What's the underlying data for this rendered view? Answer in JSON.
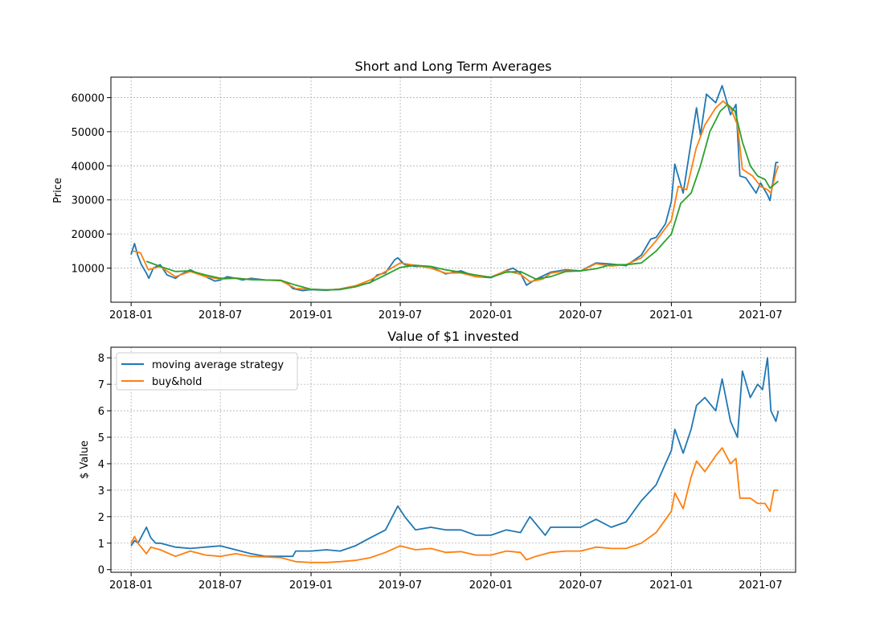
{
  "colors": {
    "blue": "#1f77b4",
    "orange": "#ff7f0e",
    "green": "#2ca02c",
    "grid": "#b0b0b0"
  },
  "chart_data": [
    {
      "type": "line",
      "title": "Short and Long Term Averages",
      "xlabel": "",
      "ylabel": "Price",
      "grid": true,
      "x_ticks": [
        "2018-01",
        "2018-07",
        "2019-01",
        "2019-07",
        "2020-01",
        "2020-07",
        "2021-01",
        "2021-07"
      ],
      "y_ticks": [
        10000,
        20000,
        30000,
        40000,
        50000,
        60000
      ],
      "ylim": [
        0,
        66000
      ],
      "xlim": [
        "2017-11-21",
        "2021-09-10"
      ],
      "series": [
        {
          "color": "#1f77b4",
          "x": [
            "2018-01-01",
            "2018-01-08",
            "2018-01-15",
            "2018-01-22",
            "2018-02-01",
            "2018-02-06",
            "2018-02-15",
            "2018-03-01",
            "2018-03-15",
            "2018-04-01",
            "2018-04-10",
            "2018-05-01",
            "2018-05-15",
            "2018-06-01",
            "2018-06-20",
            "2018-07-01",
            "2018-07-15",
            "2018-08-01",
            "2018-08-15",
            "2018-09-01",
            "2018-10-01",
            "2018-11-01",
            "2018-11-15",
            "2018-11-25",
            "2018-12-15",
            "2019-01-01",
            "2019-02-01",
            "2019-03-01",
            "2019-04-01",
            "2019-05-01",
            "2019-05-15",
            "2019-06-01",
            "2019-06-20",
            "2019-06-26",
            "2019-07-10",
            "2019-08-01",
            "2019-09-01",
            "2019-10-01",
            "2019-11-01",
            "2019-12-01",
            "2020-01-01",
            "2020-02-01",
            "2020-02-15",
            "2020-03-01",
            "2020-03-13",
            "2020-04-01",
            "2020-05-01",
            "2020-06-01",
            "2020-07-01",
            "2020-08-01",
            "2020-09-01",
            "2020-10-01",
            "2020-11-01",
            "2020-11-20",
            "2020-12-01",
            "2020-12-20",
            "2021-01-01",
            "2021-01-08",
            "2021-01-25",
            "2021-02-10",
            "2021-02-21",
            "2021-03-01",
            "2021-03-13",
            "2021-04-01",
            "2021-04-14",
            "2021-05-01",
            "2021-05-12",
            "2021-05-20",
            "2021-06-01",
            "2021-06-22",
            "2021-07-01",
            "2021-07-15",
            "2021-07-20",
            "2021-08-01",
            "2021-08-06"
          ],
          "values": [
            14000,
            17200,
            13500,
            11000,
            8500,
            7000,
            10000,
            11000,
            8000,
            7000,
            8000,
            9500,
            8500,
            7500,
            6200,
            6500,
            7500,
            7000,
            6500,
            7000,
            6500,
            6400,
            5500,
            4000,
            3400,
            3700,
            3500,
            3900,
            4800,
            5700,
            8000,
            8600,
            12500,
            13000,
            11000,
            10500,
            10500,
            8300,
            9200,
            7500,
            7200,
            9300,
            10000,
            8500,
            5000,
            6700,
            8800,
            9500,
            9200,
            11500,
            11200,
            10700,
            13800,
            18500,
            19000,
            23000,
            29500,
            40500,
            32000,
            47000,
            57000,
            49000,
            61000,
            58500,
            63500,
            55000,
            58000,
            37000,
            36500,
            32000,
            35000,
            31500,
            29800,
            41000,
            41000
          ]
        },
        {
          "color": "#ff7f0e",
          "x": [
            "2018-01-05",
            "2018-01-20",
            "2018-02-05",
            "2018-03-01",
            "2018-04-01",
            "2018-05-01",
            "2018-06-01",
            "2018-07-01",
            "2018-08-01",
            "2018-09-01",
            "2018-10-01",
            "2018-11-01",
            "2018-12-01",
            "2019-01-01",
            "2019-02-01",
            "2019-03-01",
            "2019-04-01",
            "2019-05-01",
            "2019-06-01",
            "2019-07-01",
            "2019-08-01",
            "2019-09-01",
            "2019-10-01",
            "2019-11-01",
            "2019-12-01",
            "2020-01-01",
            "2020-02-01",
            "2020-03-01",
            "2020-03-20",
            "2020-04-15",
            "2020-05-01",
            "2020-06-01",
            "2020-07-01",
            "2020-08-01",
            "2020-09-01",
            "2020-10-01",
            "2020-11-01",
            "2020-12-01",
            "2021-01-01",
            "2021-01-15",
            "2021-02-01",
            "2021-02-20",
            "2021-03-10",
            "2021-04-01",
            "2021-04-16",
            "2021-05-01",
            "2021-05-15",
            "2021-05-25",
            "2021-06-15",
            "2021-07-01",
            "2021-07-15",
            "2021-07-22",
            "2021-08-01",
            "2021-08-06"
          ],
          "values": [
            15000,
            14500,
            9500,
            10500,
            7500,
            9000,
            7500,
            6800,
            7000,
            6700,
            6500,
            6300,
            4000,
            3800,
            3600,
            3800,
            4800,
            6500,
            9000,
            11500,
            10800,
            10000,
            8500,
            8600,
            7500,
            7400,
            9200,
            8200,
            6000,
            6800,
            8500,
            9200,
            9100,
            11300,
            10600,
            11000,
            13000,
            18000,
            24000,
            34000,
            33000,
            45000,
            52000,
            57000,
            59000,
            57000,
            52000,
            39000,
            37000,
            34000,
            33000,
            32000,
            38000,
            40000
          ]
        },
        {
          "color": "#2ca02c",
          "x": [
            "2018-02-01",
            "2018-03-01",
            "2018-04-01",
            "2018-05-01",
            "2018-06-01",
            "2018-07-01",
            "2018-08-01",
            "2018-09-01",
            "2018-10-01",
            "2018-11-01",
            "2018-12-01",
            "2019-01-01",
            "2019-02-01",
            "2019-03-01",
            "2019-04-01",
            "2019-05-01",
            "2019-06-01",
            "2019-07-01",
            "2019-08-01",
            "2019-09-01",
            "2019-10-01",
            "2019-11-01",
            "2019-12-01",
            "2020-01-01",
            "2020-02-01",
            "2020-03-01",
            "2020-04-01",
            "2020-05-01",
            "2020-06-01",
            "2020-07-01",
            "2020-08-01",
            "2020-09-01",
            "2020-10-01",
            "2020-11-01",
            "2020-12-01",
            "2021-01-01",
            "2021-01-20",
            "2021-02-10",
            "2021-03-01",
            "2021-03-20",
            "2021-04-10",
            "2021-04-25",
            "2021-05-10",
            "2021-05-25",
            "2021-06-10",
            "2021-06-25",
            "2021-07-10",
            "2021-07-20",
            "2021-08-06"
          ],
          "values": [
            12000,
            10500,
            9000,
            9200,
            8000,
            7000,
            7100,
            6600,
            6500,
            6400,
            5000,
            3800,
            3600,
            3700,
            4500,
            5800,
            8000,
            10200,
            10800,
            10500,
            9500,
            8800,
            8000,
            7300,
            8800,
            9000,
            6800,
            7500,
            9000,
            9200,
            9800,
            11000,
            11000,
            11500,
            15000,
            20000,
            29000,
            32000,
            40000,
            50000,
            56000,
            58000,
            56000,
            47000,
            40000,
            37000,
            36000,
            33500,
            35500
          ]
        }
      ]
    },
    {
      "type": "line",
      "title": "Value of $1 invested",
      "xlabel": "",
      "ylabel": "$ Value",
      "grid": true,
      "legend_position": "top-left",
      "x_ticks": [
        "2018-01",
        "2018-07",
        "2019-01",
        "2019-07",
        "2020-01",
        "2020-07",
        "2021-01",
        "2021-07"
      ],
      "y_ticks": [
        0,
        1,
        2,
        3,
        4,
        5,
        6,
        7,
        8
      ],
      "ylim": [
        -0.1,
        8.4
      ],
      "xlim": [
        "2017-11-21",
        "2021-09-10"
      ],
      "series": [
        {
          "name": "moving average strategy",
          "color": "#1f77b4",
          "x": [
            "2018-01-01",
            "2018-01-08",
            "2018-01-15",
            "2018-02-01",
            "2018-02-10",
            "2018-02-20",
            "2018-03-01",
            "2018-04-01",
            "2018-05-01",
            "2018-06-01",
            "2018-07-01",
            "2018-08-01",
            "2018-09-01",
            "2018-10-01",
            "2018-11-01",
            "2018-11-25",
            "2018-12-01",
            "2019-01-01",
            "2019-02-01",
            "2019-03-01",
            "2019-04-01",
            "2019-05-01",
            "2019-06-01",
            "2019-06-26",
            "2019-07-10",
            "2019-08-01",
            "2019-09-01",
            "2019-10-01",
            "2019-11-01",
            "2019-12-01",
            "2020-01-01",
            "2020-02-01",
            "2020-03-01",
            "2020-03-20",
            "2020-04-20",
            "2020-05-01",
            "2020-06-01",
            "2020-07-01",
            "2020-08-01",
            "2020-09-01",
            "2020-10-01",
            "2020-11-01",
            "2020-12-01",
            "2021-01-01",
            "2021-01-08",
            "2021-01-25",
            "2021-02-10",
            "2021-02-21",
            "2021-03-10",
            "2021-04-01",
            "2021-04-14",
            "2021-05-01",
            "2021-05-15",
            "2021-05-25",
            "2021-06-10",
            "2021-06-25",
            "2021-07-05",
            "2021-07-15",
            "2021-07-22",
            "2021-08-01",
            "2021-08-06"
          ],
          "values": [
            0.9,
            1.1,
            1.0,
            1.6,
            1.2,
            1.0,
            1.0,
            0.85,
            0.8,
            0.85,
            0.9,
            0.75,
            0.6,
            0.5,
            0.5,
            0.5,
            0.7,
            0.7,
            0.75,
            0.7,
            0.9,
            1.2,
            1.5,
            2.4,
            2.0,
            1.5,
            1.6,
            1.5,
            1.5,
            1.3,
            1.3,
            1.5,
            1.4,
            2.0,
            1.3,
            1.6,
            1.6,
            1.6,
            1.9,
            1.6,
            1.8,
            2.6,
            3.2,
            4.5,
            5.3,
            4.4,
            5.3,
            6.2,
            6.5,
            6.0,
            7.2,
            5.6,
            5.0,
            7.5,
            6.5,
            7.0,
            6.8,
            8.0,
            6.0,
            5.6,
            6.0
          ]
        },
        {
          "name": "buy&hold",
          "color": "#ff7f0e",
          "x": [
            "2018-01-01",
            "2018-01-08",
            "2018-01-15",
            "2018-02-01",
            "2018-02-10",
            "2018-03-01",
            "2018-04-01",
            "2018-05-01",
            "2018-06-01",
            "2018-07-01",
            "2018-08-01",
            "2018-09-01",
            "2018-10-01",
            "2018-11-01",
            "2018-12-01",
            "2019-01-01",
            "2019-02-01",
            "2019-03-01",
            "2019-04-01",
            "2019-05-01",
            "2019-06-01",
            "2019-07-01",
            "2019-08-01",
            "2019-09-01",
            "2019-10-01",
            "2019-11-01",
            "2019-12-01",
            "2020-01-01",
            "2020-02-01",
            "2020-03-01",
            "2020-03-13",
            "2020-04-01",
            "2020-05-01",
            "2020-06-01",
            "2020-07-01",
            "2020-08-01",
            "2020-09-01",
            "2020-10-01",
            "2020-11-01",
            "2020-12-01",
            "2021-01-01",
            "2021-01-08",
            "2021-01-25",
            "2021-02-10",
            "2021-02-21",
            "2021-03-10",
            "2021-04-01",
            "2021-04-14",
            "2021-05-01",
            "2021-05-12",
            "2021-05-20",
            "2021-06-10",
            "2021-06-25",
            "2021-07-10",
            "2021-07-20",
            "2021-07-28",
            "2021-08-06"
          ],
          "values": [
            1.0,
            1.25,
            1.0,
            0.6,
            0.85,
            0.75,
            0.5,
            0.7,
            0.55,
            0.5,
            0.6,
            0.5,
            0.48,
            0.45,
            0.3,
            0.27,
            0.27,
            0.3,
            0.35,
            0.45,
            0.65,
            0.9,
            0.75,
            0.8,
            0.65,
            0.68,
            0.55,
            0.55,
            0.7,
            0.65,
            0.37,
            0.5,
            0.65,
            0.7,
            0.7,
            0.85,
            0.8,
            0.8,
            1.0,
            1.4,
            2.2,
            2.9,
            2.3,
            3.5,
            4.1,
            3.7,
            4.3,
            4.6,
            4.0,
            4.2,
            2.7,
            2.7,
            2.5,
            2.5,
            2.2,
            3.0,
            3.0
          ]
        }
      ]
    }
  ]
}
